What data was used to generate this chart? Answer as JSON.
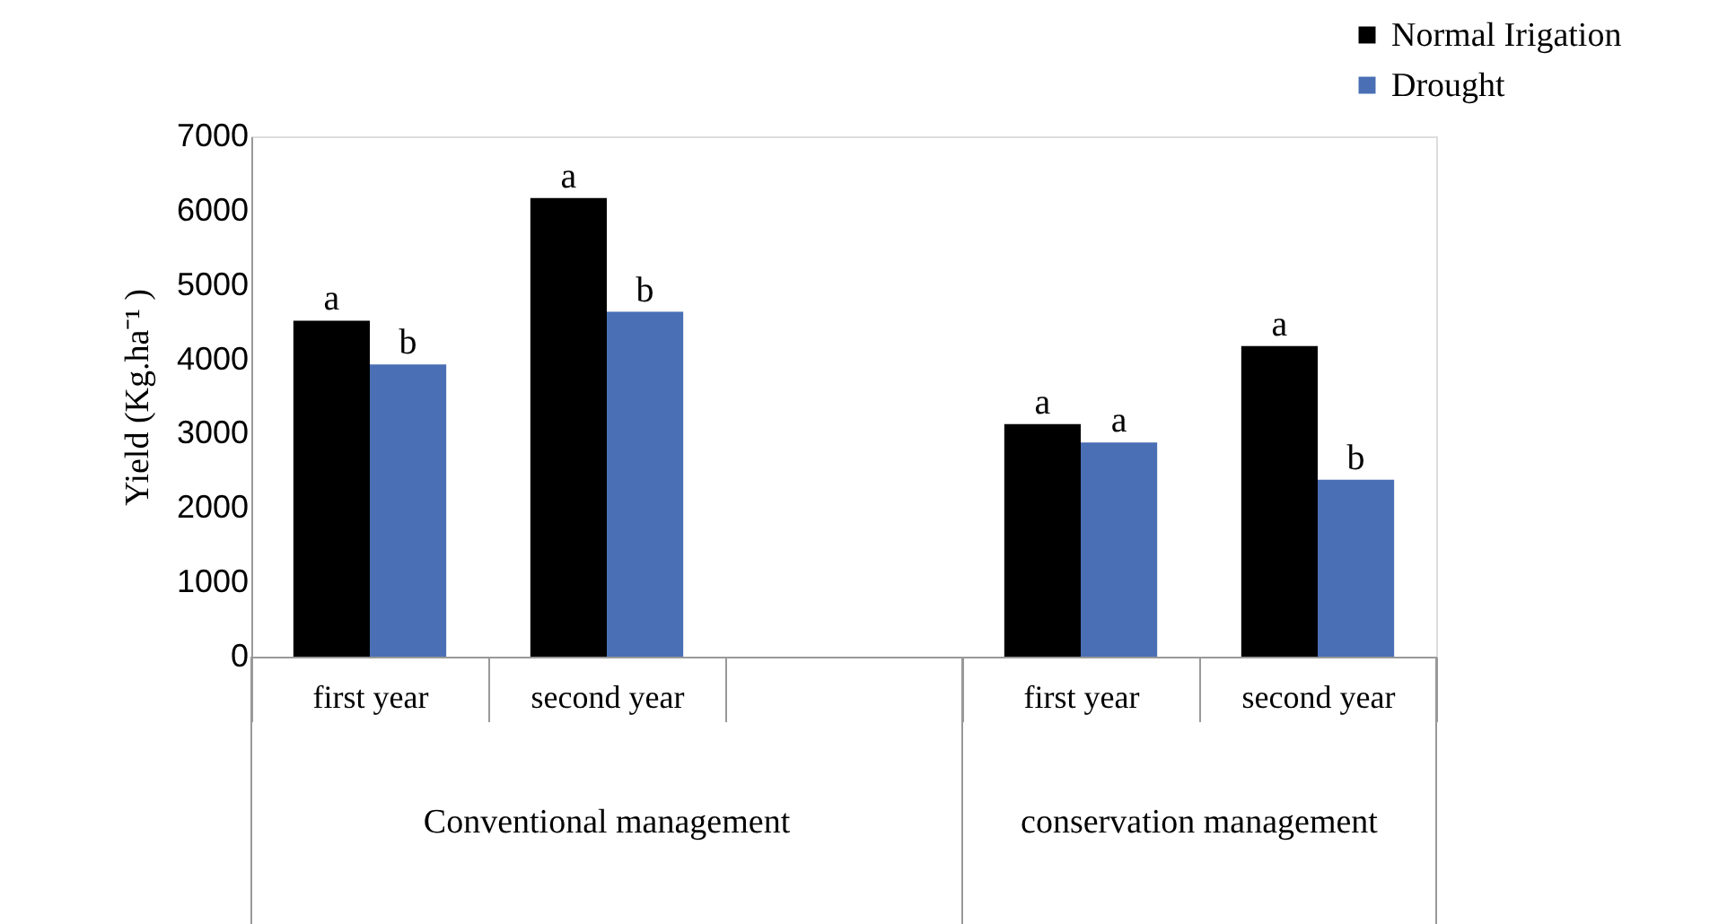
{
  "chart_data": {
    "type": "bar",
    "ylabel": "Yield (Kg.ha⁻¹ )",
    "categories": [
      "first year",
      "second year",
      null,
      "first year",
      "second year"
    ],
    "series": [
      {
        "name": "Normal Irigation",
        "color": "#000000",
        "values": [
          4520,
          6170,
          null,
          3130,
          4180
        ],
        "value_labels": [
          "a",
          "a",
          null,
          "a",
          "a"
        ]
      },
      {
        "name": "Drought",
        "color": "#4a6fb5",
        "values": [
          3930,
          4640,
          null,
          2880,
          2380
        ],
        "value_labels": [
          "b",
          "b",
          null,
          "a",
          "b"
        ]
      }
    ],
    "annotations": [
      "Conventional management",
      "conservation management"
    ],
    "ylim": [
      0,
      7000
    ],
    "yticks": [
      0,
      1000,
      2000,
      3000,
      4000,
      5000,
      6000,
      7000
    ],
    "grid": false,
    "legend": "top right"
  }
}
